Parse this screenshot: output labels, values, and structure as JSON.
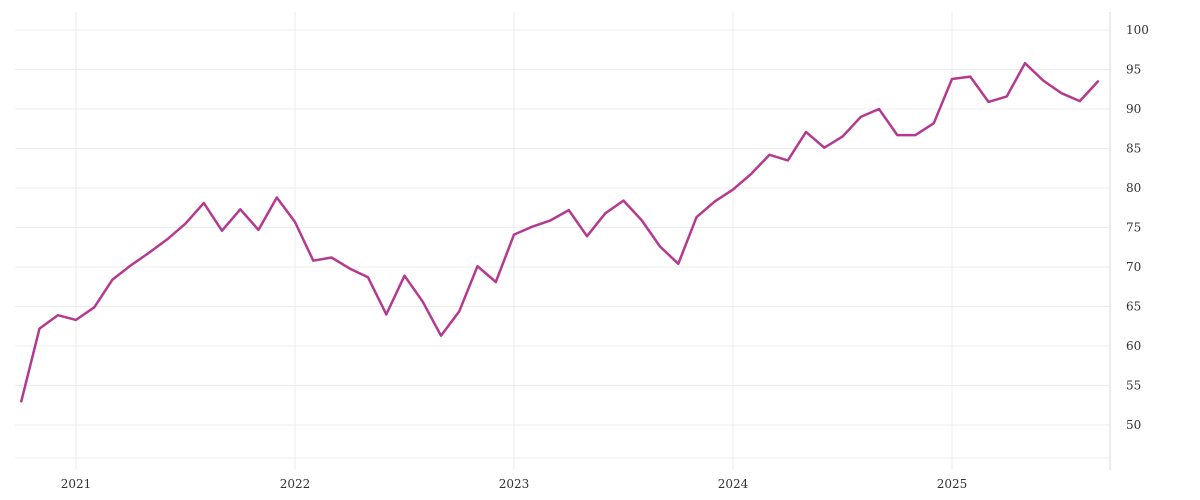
{
  "chart_data": {
    "type": "line",
    "title": "",
    "xlabel": "",
    "ylabel": "",
    "ylim": [
      45,
      102
    ],
    "y_ticks": [
      50,
      55,
      60,
      65,
      70,
      75,
      80,
      85,
      90,
      95,
      100
    ],
    "x_ticks": [
      "2021",
      "2022",
      "2023",
      "2024",
      "2025"
    ],
    "grid": true,
    "series": [
      {
        "color": "#b5398e",
        "points": [
          [
            "2020-10",
            53.0
          ],
          [
            "2020-11",
            62.2
          ],
          [
            "2020-12",
            63.9
          ],
          [
            "2021-01",
            63.3
          ],
          [
            "2021-02",
            64.9
          ],
          [
            "2021-03",
            68.4
          ],
          [
            "2021-04",
            70.2
          ],
          [
            "2021-05",
            71.8
          ],
          [
            "2021-06",
            73.5
          ],
          [
            "2021-07",
            75.5
          ],
          [
            "2021-08",
            78.1
          ],
          [
            "2021-09",
            74.6
          ],
          [
            "2021-10",
            77.3
          ],
          [
            "2021-11",
            74.7
          ],
          [
            "2021-12",
            78.8
          ],
          [
            "2022-01",
            75.7
          ],
          [
            "2022-02",
            70.8
          ],
          [
            "2022-03",
            71.2
          ],
          [
            "2022-04",
            69.8
          ],
          [
            "2022-05",
            68.7
          ],
          [
            "2022-06",
            64.0
          ],
          [
            "2022-07",
            68.9
          ],
          [
            "2022-08",
            65.6
          ],
          [
            "2022-09",
            61.3
          ],
          [
            "2022-10",
            64.4
          ],
          [
            "2022-11",
            70.1
          ],
          [
            "2022-12",
            68.1
          ],
          [
            "2023-01",
            74.1
          ],
          [
            "2023-02",
            75.1
          ],
          [
            "2023-03",
            75.9
          ],
          [
            "2023-04",
            77.2
          ],
          [
            "2023-05",
            73.9
          ],
          [
            "2023-06",
            76.8
          ],
          [
            "2023-07",
            78.4
          ],
          [
            "2023-08",
            75.9
          ],
          [
            "2023-09",
            72.6
          ],
          [
            "2023-10",
            70.4
          ],
          [
            "2023-11",
            76.3
          ],
          [
            "2023-12",
            78.3
          ],
          [
            "2024-01",
            79.8
          ],
          [
            "2024-02",
            81.8
          ],
          [
            "2024-03",
            84.2
          ],
          [
            "2024-04",
            83.5
          ],
          [
            "2024-05",
            87.1
          ],
          [
            "2024-06",
            85.1
          ],
          [
            "2024-07",
            86.5
          ],
          [
            "2024-08",
            89.0
          ],
          [
            "2024-09",
            90.0
          ],
          [
            "2024-10",
            86.7
          ],
          [
            "2024-11",
            86.7
          ],
          [
            "2024-12",
            88.2
          ],
          [
            "2025-01",
            93.8
          ],
          [
            "2025-02",
            94.1
          ],
          [
            "2025-03",
            90.9
          ],
          [
            "2025-04",
            91.6
          ],
          [
            "2025-05",
            95.8
          ],
          [
            "2025-06",
            93.6
          ],
          [
            "2025-07",
            92.0
          ],
          [
            "2025-08",
            91.0
          ],
          [
            "2025-09",
            93.5
          ]
        ]
      }
    ]
  }
}
